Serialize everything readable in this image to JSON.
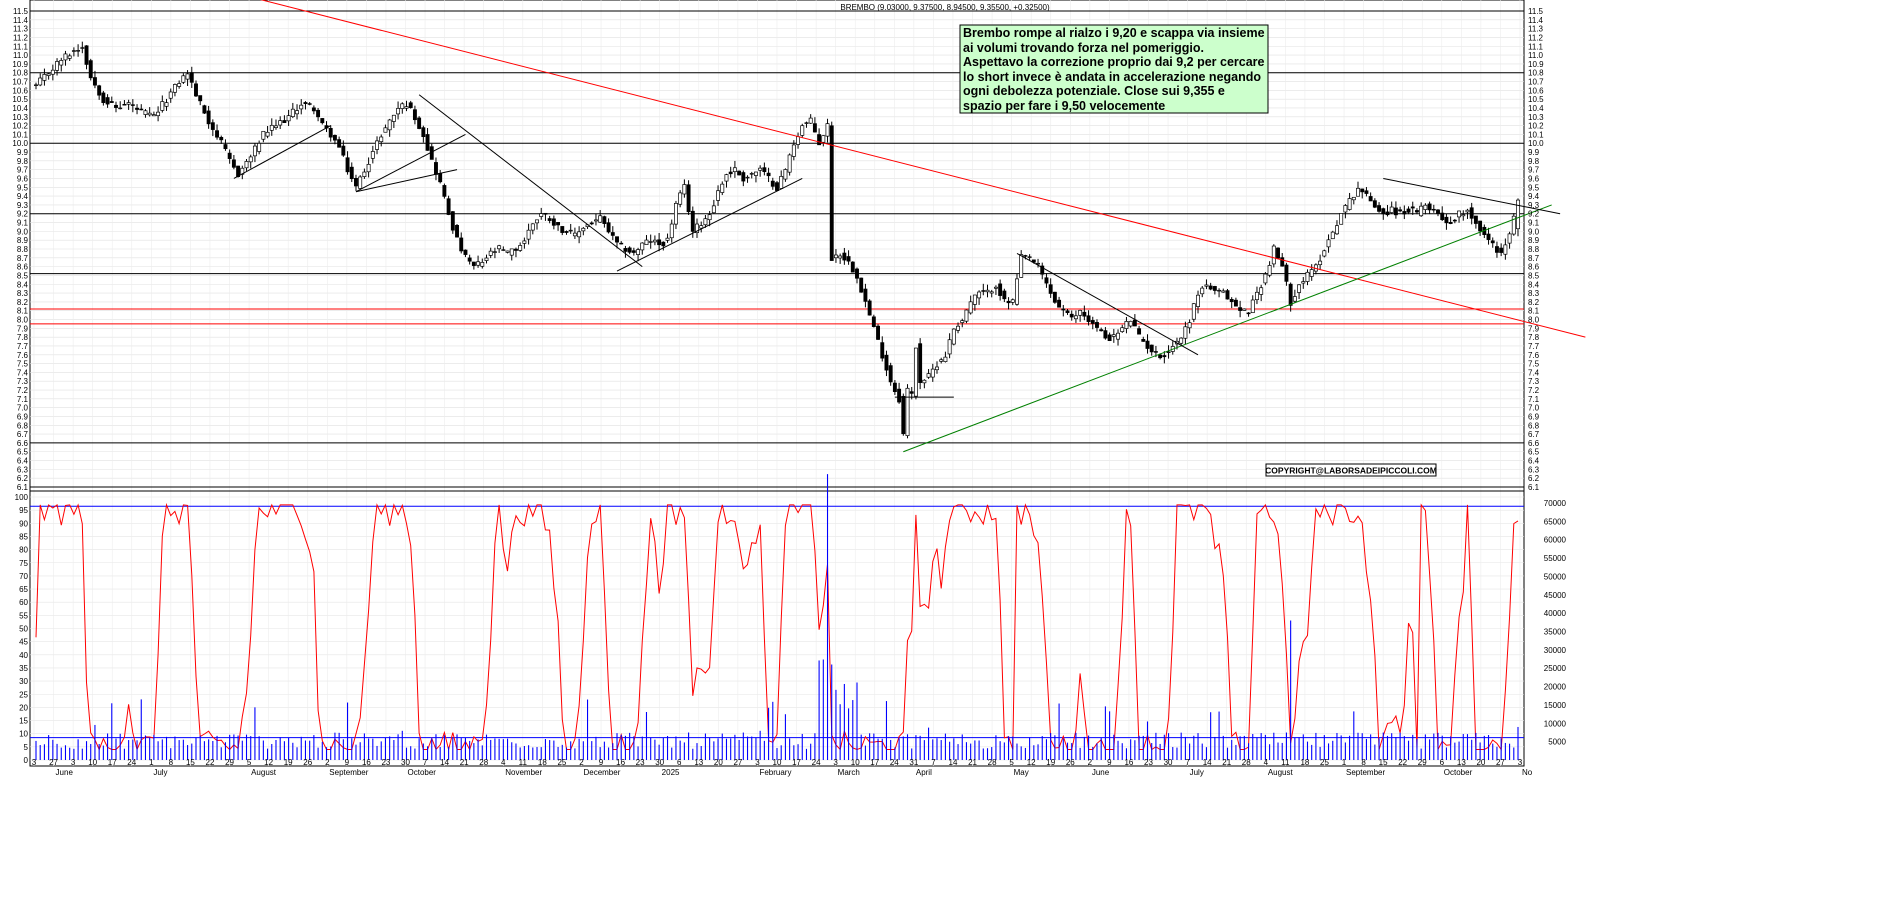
{
  "chart_data": [
    {
      "type": "candlestick",
      "title": "BREMBO (9.03000, 9.37500, 8.94500, 9.35500, +0.32500)",
      "ylim": [
        6.1,
        11.5
      ],
      "y_ticks": [
        6.1,
        6.2,
        6.3,
        6.4,
        6.5,
        6.6,
        6.7,
        6.8,
        6.9,
        7.0,
        7.1,
        7.2,
        7.3,
        7.4,
        7.5,
        7.6,
        7.7,
        7.8,
        7.9,
        8.0,
        8.1,
        8.2,
        8.3,
        8.4,
        8.5,
        8.6,
        8.7,
        8.8,
        8.9,
        9.0,
        9.1,
        9.2,
        9.3,
        9.4,
        9.5,
        9.6,
        9.7,
        9.8,
        9.9,
        10.0,
        10.1,
        10.2,
        10.3,
        10.4,
        10.5,
        10.6,
        10.7,
        10.8,
        10.9,
        11.0,
        11.1,
        11.2,
        11.3,
        11.4,
        11.5
      ],
      "last_bar": {
        "open": 9.03,
        "high": 9.375,
        "low": 8.945,
        "close": 9.355,
        "change": 0.325
      },
      "price_path": [
        [
          0,
          10.65
        ],
        [
          3,
          10.8
        ],
        [
          6,
          10.95
        ],
        [
          9,
          11.05
        ],
        [
          11,
          11.1
        ],
        [
          13,
          10.75
        ],
        [
          16,
          10.5
        ],
        [
          19,
          10.4
        ],
        [
          22,
          10.45
        ],
        [
          25,
          10.35
        ],
        [
          28,
          10.3
        ],
        [
          31,
          10.5
        ],
        [
          34,
          10.7
        ],
        [
          36,
          10.8
        ],
        [
          38,
          10.55
        ],
        [
          41,
          10.25
        ],
        [
          44,
          10.0
        ],
        [
          46,
          9.8
        ],
        [
          48,
          9.65
        ],
        [
          51,
          9.85
        ],
        [
          54,
          10.1
        ],
        [
          57,
          10.2
        ],
        [
          60,
          10.3
        ],
        [
          63,
          10.45
        ],
        [
          66,
          10.4
        ],
        [
          68,
          10.2
        ],
        [
          70,
          10.1
        ],
        [
          72,
          9.95
        ],
        [
          74,
          9.7
        ],
        [
          76,
          9.5
        ],
        [
          78,
          9.7
        ],
        [
          80,
          9.9
        ],
        [
          82,
          10.1
        ],
        [
          84,
          10.25
        ],
        [
          86,
          10.4
        ],
        [
          88,
          10.45
        ],
        [
          90,
          10.3
        ],
        [
          92,
          10.1
        ],
        [
          94,
          9.8
        ],
        [
          96,
          9.55
        ],
        [
          98,
          9.2
        ],
        [
          100,
          8.9
        ],
        [
          102,
          8.7
        ],
        [
          104,
          8.6
        ],
        [
          106,
          8.65
        ],
        [
          108,
          8.75
        ],
        [
          110,
          8.8
        ],
        [
          112,
          8.75
        ],
        [
          114,
          8.8
        ],
        [
          116,
          8.9
        ],
        [
          118,
          9.1
        ],
        [
          120,
          9.2
        ],
        [
          122,
          9.15
        ],
        [
          124,
          9.05
        ],
        [
          126,
          9.0
        ],
        [
          128,
          8.95
        ],
        [
          130,
          9.05
        ],
        [
          132,
          9.1
        ],
        [
          134,
          9.15
        ],
        [
          136,
          9.0
        ],
        [
          138,
          8.85
        ],
        [
          140,
          8.8
        ],
        [
          142,
          8.75
        ],
        [
          144,
          8.85
        ],
        [
          146,
          8.9
        ],
        [
          148,
          8.85
        ],
        [
          150,
          8.9
        ],
        [
          152,
          9.3
        ],
        [
          154,
          9.5
        ],
        [
          156,
          9.0
        ],
        [
          158,
          9.1
        ],
        [
          160,
          9.2
        ],
        [
          162,
          9.45
        ],
        [
          164,
          9.65
        ],
        [
          166,
          9.7
        ],
        [
          168,
          9.6
        ],
        [
          170,
          9.65
        ],
        [
          172,
          9.7
        ],
        [
          174,
          9.6
        ],
        [
          176,
          9.5
        ],
        [
          178,
          9.7
        ],
        [
          180,
          10.0
        ],
        [
          182,
          10.2
        ],
        [
          184,
          10.25
        ],
        [
          186,
          10.0
        ],
        [
          188,
          10.2
        ],
        [
          189,
          8.7
        ],
        [
          191,
          8.75
        ],
        [
          193,
          8.65
        ],
        [
          195,
          8.5
        ],
        [
          197,
          8.2
        ],
        [
          199,
          7.9
        ],
        [
          201,
          7.6
        ],
        [
          203,
          7.3
        ],
        [
          205,
          7.1
        ],
        [
          206,
          6.7
        ],
        [
          207,
          7.2
        ],
        [
          208,
          7.15
        ],
        [
          209,
          7.7
        ],
        [
          210,
          7.3
        ],
        [
          212,
          7.35
        ],
        [
          214,
          7.5
        ],
        [
          216,
          7.6
        ],
        [
          218,
          7.9
        ],
        [
          220,
          8.0
        ],
        [
          222,
          8.2
        ],
        [
          224,
          8.3
        ],
        [
          226,
          8.3
        ],
        [
          228,
          8.4
        ],
        [
          230,
          8.2
        ],
        [
          232,
          8.2
        ],
        [
          234,
          8.7
        ],
        [
          236,
          8.7
        ],
        [
          238,
          8.6
        ],
        [
          240,
          8.4
        ],
        [
          242,
          8.2
        ],
        [
          244,
          8.1
        ],
        [
          246,
          8.0
        ],
        [
          248,
          8.1
        ],
        [
          250,
          8.0
        ],
        [
          252,
          7.9
        ],
        [
          254,
          7.8
        ],
        [
          256,
          7.8
        ],
        [
          258,
          7.9
        ],
        [
          260,
          8.0
        ],
        [
          262,
          7.8
        ],
        [
          264,
          7.7
        ],
        [
          266,
          7.6
        ],
        [
          268,
          7.6
        ],
        [
          270,
          7.7
        ],
        [
          272,
          7.8
        ],
        [
          274,
          8.0
        ],
        [
          276,
          8.3
        ],
        [
          278,
          8.4
        ],
        [
          280,
          8.3
        ],
        [
          282,
          8.3
        ],
        [
          284,
          8.2
        ],
        [
          286,
          8.1
        ],
        [
          288,
          8.1
        ],
        [
          290,
          8.3
        ],
        [
          292,
          8.5
        ],
        [
          294,
          8.8
        ],
        [
          296,
          8.6
        ],
        [
          298,
          8.2
        ],
        [
          300,
          8.4
        ],
        [
          302,
          8.5
        ],
        [
          304,
          8.6
        ],
        [
          306,
          8.8
        ],
        [
          308,
          9.0
        ],
        [
          310,
          9.2
        ],
        [
          312,
          9.35
        ],
        [
          314,
          9.5
        ],
        [
          316,
          9.4
        ],
        [
          318,
          9.3
        ],
        [
          320,
          9.2
        ],
        [
          322,
          9.25
        ],
        [
          324,
          9.2
        ],
        [
          326,
          9.25
        ],
        [
          328,
          9.2
        ],
        [
          330,
          9.3
        ],
        [
          332,
          9.25
        ],
        [
          334,
          9.15
        ],
        [
          336,
          9.1
        ],
        [
          338,
          9.2
        ],
        [
          340,
          9.25
        ],
        [
          342,
          9.1
        ],
        [
          344,
          8.95
        ],
        [
          346,
          8.85
        ],
        [
          348,
          8.75
        ],
        [
          350,
          8.95
        ],
        [
          352,
          9.355
        ]
      ],
      "lines": [
        {
          "name": "red-downtrend",
          "color": "#ff0000",
          "from": [
            -10,
            12.4
          ],
          "to": [
            368,
            7.8
          ]
        },
        {
          "name": "green-uptrend",
          "color": "#008000",
          "from": [
            206,
            6.5
          ],
          "to": [
            360,
            9.3
          ]
        },
        {
          "name": "trend-a",
          "color": "#000000",
          "from": [
            47,
            9.6
          ],
          "to": [
            70,
            10.2
          ]
        },
        {
          "name": "trend-b",
          "color": "#000000",
          "from": [
            76,
            9.45
          ],
          "to": [
            100,
            9.7
          ]
        },
        {
          "name": "trend-c",
          "color": "#000000",
          "from": [
            76,
            9.45
          ],
          "to": [
            102,
            10.1
          ]
        },
        {
          "name": "trend-d",
          "color": "#000000",
          "from": [
            91,
            10.55
          ],
          "to": [
            144,
            8.6
          ]
        },
        {
          "name": "trend-e",
          "color": "#000000",
          "from": [
            138,
            8.55
          ],
          "to": [
            182,
            9.6
          ]
        },
        {
          "name": "trend-f",
          "color": "#000000",
          "from": [
            233,
            8.75
          ],
          "to": [
            276,
            7.6
          ]
        },
        {
          "name": "trend-g",
          "color": "#000000",
          "from": [
            320,
            9.6
          ],
          "to": [
            362,
            9.2
          ]
        },
        {
          "name": "base-h",
          "color": "#000000",
          "from": [
            204,
            7.12
          ],
          "to": [
            218,
            7.12
          ]
        }
      ],
      "hlines": [
        {
          "y": 11.5,
          "color": "#000000"
        },
        {
          "y": 10.8,
          "color": "#000000"
        },
        {
          "y": 10.0,
          "color": "#000000"
        },
        {
          "y": 9.2,
          "color": "#000000"
        },
        {
          "y": 8.52,
          "color": "#000000"
        },
        {
          "y": 8.12,
          "color": "#ff0000"
        },
        {
          "y": 7.95,
          "color": "#ff0000"
        },
        {
          "y": 6.6,
          "color": "#000000"
        },
        {
          "y": 6.1,
          "color": "#000000"
        }
      ],
      "annotation": "Brembo rompe al rialzo i 9,20 e scappa via insieme ai volumi trovando forza nel pomeriggio. Aspettavo la correzione proprio dai 9,2 per cercare lo short invece è andata in accelerazione negando ogni debolezza potenziale. Close sui 9,355 e spazio per fare i 9,50 velocemente",
      "copyright": "COPYRIGHT@LABORSADEIPICCOLI.COM"
    },
    {
      "type": "line",
      "ylim": [
        0,
        100
      ],
      "y_ticks": [
        0,
        5,
        10,
        15,
        20,
        25,
        30,
        35,
        40,
        45,
        50,
        55,
        60,
        65,
        70,
        75,
        80,
        85,
        90,
        95,
        100
      ],
      "series_color": "#ff0000",
      "hlines": [
        {
          "y": 96.5,
          "color": "#0000ff"
        },
        {
          "y": 8.5,
          "color": "#0000ff"
        }
      ],
      "values_seed": 7
    },
    {
      "type": "bar",
      "ylim": [
        0,
        70000
      ],
      "y_ticks": [
        5000,
        10000,
        15000,
        20000,
        25000,
        30000,
        35000,
        40000,
        45000,
        50000,
        55000,
        60000,
        65000,
        70000
      ],
      "series_color": "#0000ff"
    }
  ],
  "x_axis": {
    "day_labels": [
      "3",
      "27",
      "3",
      "10",
      "17",
      "24",
      "1",
      "8",
      "15",
      "22",
      "29",
      "5",
      "12",
      "19",
      "26",
      "2",
      "9",
      "16",
      "23",
      "30",
      "7",
      "14",
      "21",
      "28",
      "4",
      "11",
      "18",
      "25",
      "2",
      "9",
      "16",
      "23",
      "30",
      "6",
      "13",
      "20",
      "27",
      "3",
      "10",
      "17",
      "24",
      "3",
      "10",
      "17",
      "24",
      "31",
      "7",
      "14",
      "21",
      "28",
      "5",
      "12",
      "19",
      "26",
      "2",
      "9",
      "16",
      "23",
      "30",
      "7",
      "14",
      "21",
      "28",
      "4",
      "11",
      "18",
      "25",
      "1",
      "8",
      "15",
      "22",
      "29",
      "6",
      "13",
      "20",
      "27",
      "3"
    ],
    "month_labels": [
      "June",
      "July",
      "August",
      "September",
      "October",
      "November",
      "December",
      "2025",
      "February",
      "March",
      "April",
      "May",
      "June",
      "July",
      "August",
      "September",
      "October",
      "No"
    ]
  }
}
